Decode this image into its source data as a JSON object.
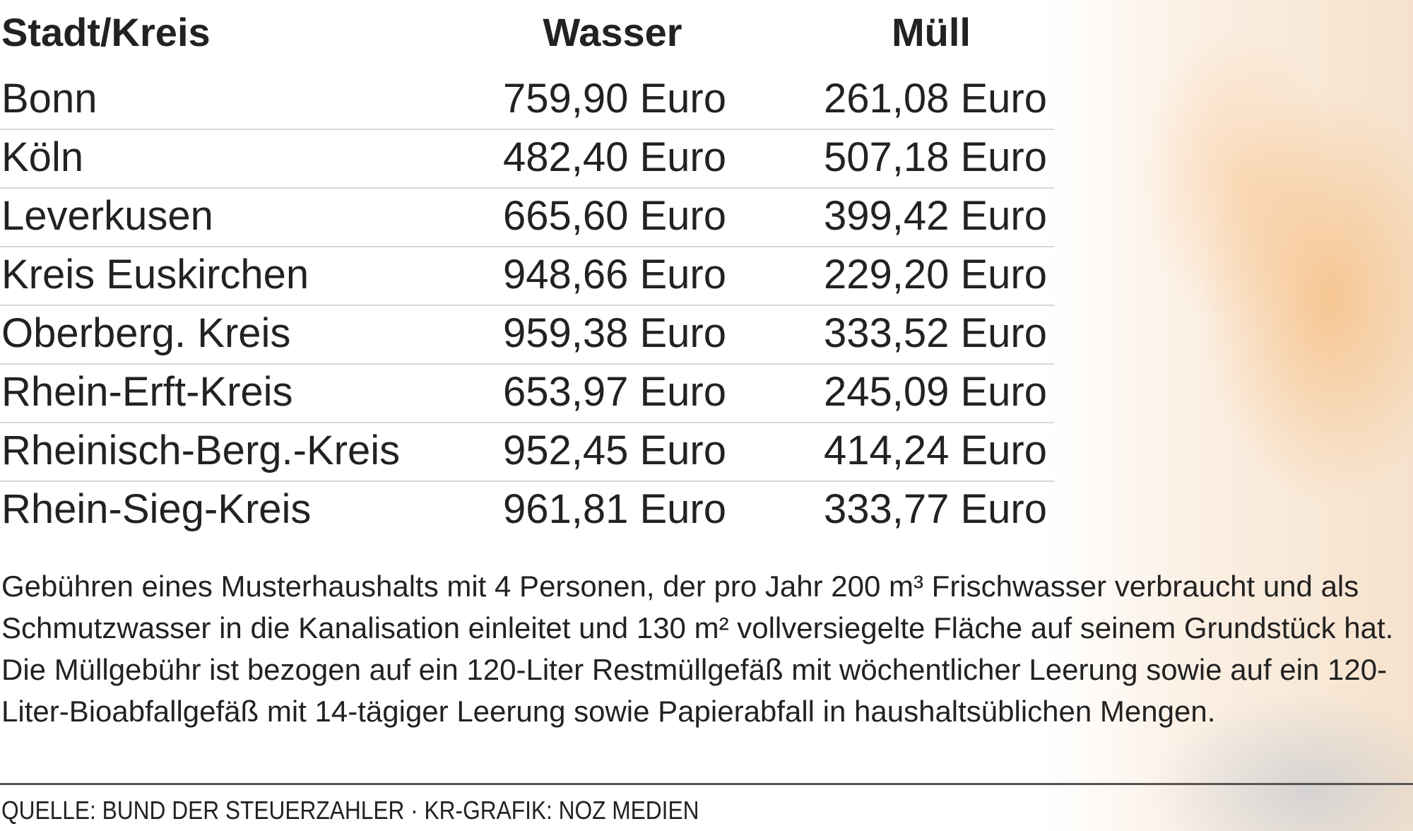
{
  "table": {
    "headers": [
      "Stadt/Kreis",
      "Wasser",
      "Müll"
    ],
    "rows": [
      [
        "Bonn",
        "759,90 Euro",
        "261,08 Euro"
      ],
      [
        "Köln",
        "482,40 Euro",
        "507,18 Euro"
      ],
      [
        "Leverkusen",
        "665,60 Euro",
        "399,42 Euro"
      ],
      [
        "Kreis Euskirchen",
        "948,66 Euro",
        "229,20 Euro"
      ],
      [
        "Oberberg. Kreis",
        "959,38 Euro",
        "333,52 Euro"
      ],
      [
        "Rhein-Erft-Kreis",
        "653,97 Euro",
        "245,09 Euro"
      ],
      [
        "Rheinisch-Berg.-Kreis",
        "952,45 Euro",
        "414,24 Euro"
      ],
      [
        "Rhein-Sieg-Kreis",
        "961,81 Euro",
        "333,77 Euro"
      ]
    ]
  },
  "note": "Gebühren eines Musterhaushalts mit 4 Personen, der pro Jahr 200 m³ Frischwasser verbraucht und als Schmutzwasser in die Kanalisation einleitet und 130 m² vollversiegelte Fläche auf seinem Grundstück hat. Die Müllgebühr ist bezogen auf ein 120-Liter Restmüllgefäß mit wöchentlicher Leerung sowie auf ein 120-Liter-Bioabfallgefäß mit 14-tägiger Leerung sowie Papierabfall in haushaltsüblichen Mengen.",
  "source": "QUELLE: BUND DER STEUERZAHLER · KR-GRAFIK: NOZ MEDIEN"
}
